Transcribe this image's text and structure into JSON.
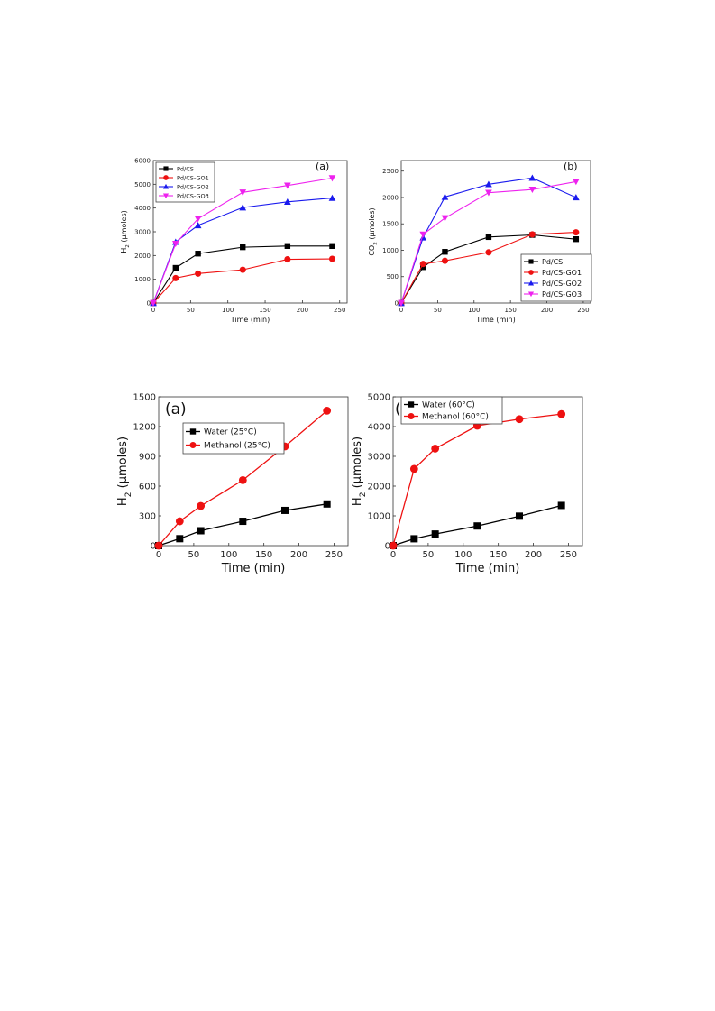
{
  "chart_data": [
    {
      "panel": "(a)",
      "type": "line",
      "xlabel": "Time (min)",
      "ylabel": "H",
      "ylabel_sub": "2",
      "ylabel_rest": " (µmoles)",
      "xlim": [
        0,
        260
      ],
      "ylim": [
        0,
        6000
      ],
      "xticks": [
        0,
        50,
        100,
        150,
        200,
        250
      ],
      "yticks": [
        0,
        1000,
        2000,
        3000,
        4000,
        5000,
        6000
      ],
      "legend_position": "top-left",
      "series": [
        {
          "name": "Pd/CS",
          "color": "#000000",
          "marker": "square",
          "x": [
            0,
            30,
            60,
            120,
            180,
            240
          ],
          "y": [
            0,
            1480,
            2080,
            2350,
            2400,
            2400
          ]
        },
        {
          "name": "Pd/CS-GO1",
          "color": "#ee1111",
          "marker": "circle",
          "x": [
            0,
            30,
            60,
            120,
            180,
            240
          ],
          "y": [
            0,
            1050,
            1240,
            1400,
            1840,
            1860
          ]
        },
        {
          "name": "Pd/CS-GO2",
          "color": "#1a1aee",
          "marker": "triangle-up",
          "x": [
            0,
            30,
            60,
            120,
            180,
            240
          ],
          "y": [
            0,
            2570,
            3270,
            4020,
            4260,
            4420
          ]
        },
        {
          "name": "Pd/CS-GO3",
          "color": "#ee22ee",
          "marker": "triangle-down",
          "x": [
            0,
            30,
            60,
            120,
            180,
            240
          ],
          "y": [
            0,
            2500,
            3550,
            4660,
            4950,
            5260
          ]
        }
      ]
    },
    {
      "panel": "(b)",
      "type": "line",
      "xlabel": "Time (min)",
      "ylabel": "CO",
      "ylabel_sub": "2",
      "ylabel_rest": " (µmoles)",
      "xlim": [
        0,
        260
      ],
      "ylim": [
        0,
        2700
      ],
      "xticks": [
        0,
        50,
        100,
        150,
        200,
        250
      ],
      "yticks": [
        0,
        500,
        1000,
        1500,
        2000,
        2500
      ],
      "legend_position": "bottom-right",
      "series": [
        {
          "name": "Pd/CS",
          "color": "#000000",
          "marker": "square",
          "x": [
            0,
            30,
            60,
            120,
            180,
            240
          ],
          "y": [
            0,
            680,
            970,
            1250,
            1290,
            1210
          ]
        },
        {
          "name": "Pd/CS-GO1",
          "color": "#ee1111",
          "marker": "circle",
          "x": [
            0,
            30,
            60,
            120,
            180,
            240
          ],
          "y": [
            0,
            740,
            800,
            960,
            1300,
            1340
          ]
        },
        {
          "name": "Pd/CS-GO2",
          "color": "#1a1aee",
          "marker": "triangle-up",
          "x": [
            0,
            30,
            60,
            120,
            180,
            240
          ],
          "y": [
            0,
            1240,
            2010,
            2250,
            2370,
            2000
          ]
        },
        {
          "name": "Pd/CS-GO3",
          "color": "#ee22ee",
          "marker": "triangle-down",
          "x": [
            0,
            30,
            60,
            120,
            180,
            240
          ],
          "y": [
            0,
            1300,
            1610,
            2090,
            2150,
            2300
          ]
        }
      ]
    },
    {
      "panel": "(a)",
      "type": "line",
      "xlabel": "Time (min)",
      "ylabel": "H",
      "ylabel_sub": "2",
      "ylabel_rest": " (µmoles)",
      "xlim": [
        0,
        270
      ],
      "ylim": [
        0,
        1500
      ],
      "xticks": [
        0,
        50,
        100,
        150,
        200,
        250
      ],
      "yticks": [
        0,
        300,
        600,
        900,
        1200,
        1500
      ],
      "legend_position": "top-left",
      "series": [
        {
          "name": "Water (25°C)",
          "color": "#000000",
          "marker": "square",
          "x": [
            0,
            30,
            60,
            120,
            180,
            240
          ],
          "y": [
            0,
            70,
            150,
            245,
            355,
            420
          ]
        },
        {
          "name": "Methanol (25°C)",
          "color": "#ee1111",
          "marker": "circle",
          "x": [
            0,
            30,
            60,
            120,
            180,
            240
          ],
          "y": [
            0,
            245,
            400,
            660,
            1000,
            1360
          ]
        }
      ]
    },
    {
      "panel": "(b)",
      "type": "line",
      "xlabel": "Time (min)",
      "ylabel": "H",
      "ylabel_sub": "2",
      "ylabel_rest": " (µmoles)",
      "xlim": [
        0,
        270
      ],
      "ylim": [
        0,
        5000
      ],
      "xticks": [
        0,
        50,
        100,
        150,
        200,
        250
      ],
      "yticks": [
        0,
        1000,
        2000,
        3000,
        4000,
        5000
      ],
      "legend_position": "top-left",
      "series": [
        {
          "name": "Water (60°C)",
          "color": "#000000",
          "marker": "square",
          "x": [
            0,
            30,
            60,
            120,
            180,
            240
          ],
          "y": [
            0,
            230,
            390,
            660,
            990,
            1350
          ]
        },
        {
          "name": "Methanol (60°C)",
          "color": "#ee1111",
          "marker": "circle",
          "x": [
            0,
            30,
            60,
            120,
            180,
            240
          ],
          "y": [
            0,
            2580,
            3260,
            4030,
            4250,
            4420
          ]
        }
      ]
    }
  ]
}
